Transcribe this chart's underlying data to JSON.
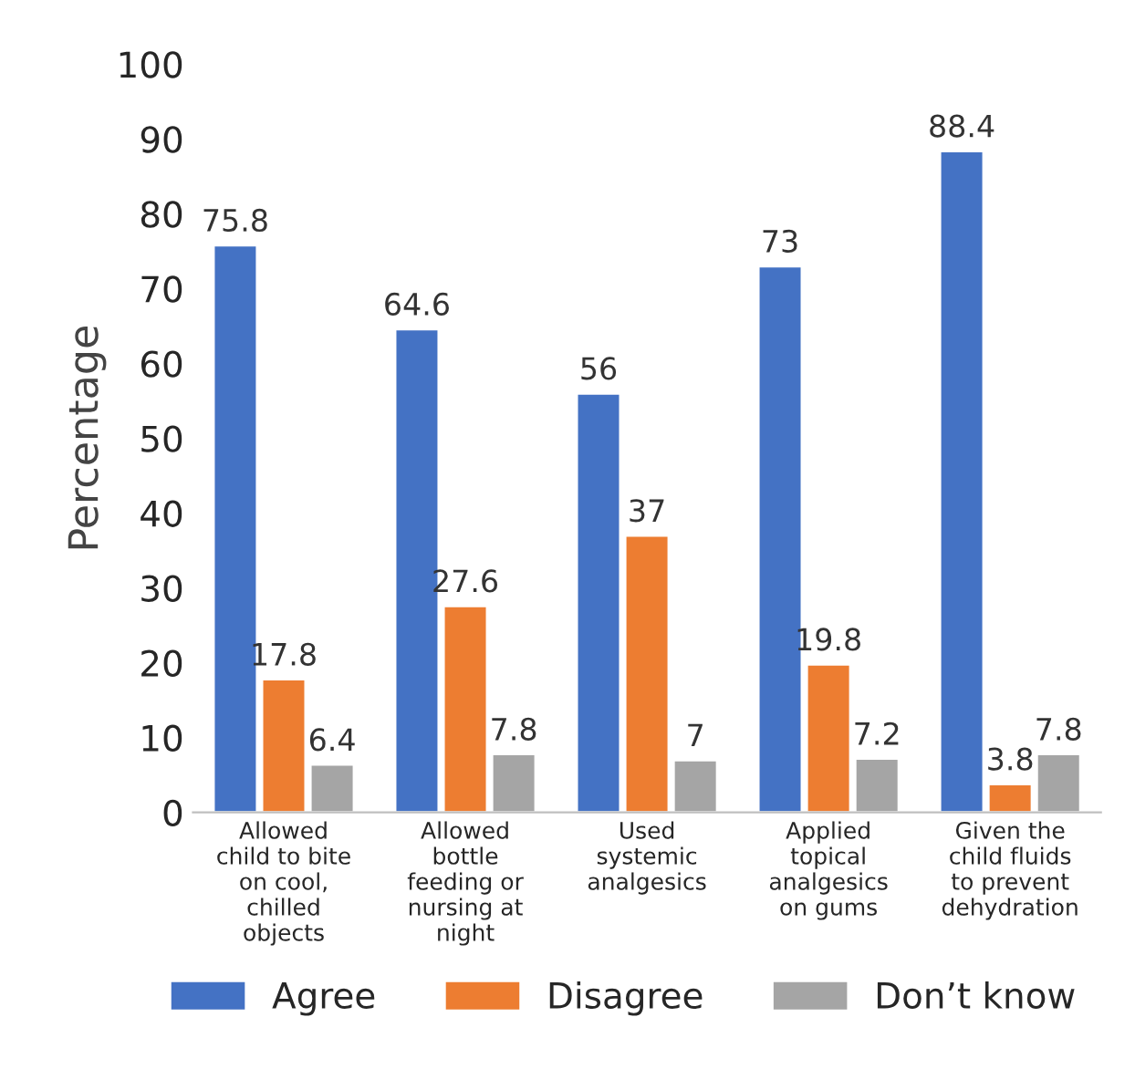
{
  "chart_data": {
    "type": "bar",
    "ylabel": "Percentage",
    "categories": [
      "Allowed\nchild to bite\non cool,\nchilled\nobjects",
      "Allowed\nbottle\nfeeding or\nnursing at\nnight",
      "Used\nsystemic\nanalgesics",
      "Applied\ntopical\nanalgesics\non gums",
      "Given the\nchild fluids\nto prevent\ndehydration"
    ],
    "series": [
      {
        "name": "Agree",
        "color": "#4472c4",
        "values": [
          75.8,
          64.6,
          56,
          73,
          88.4
        ]
      },
      {
        "name": "Disagree",
        "color": "#ed7d31",
        "values": [
          17.8,
          27.6,
          37,
          19.8,
          3.8
        ]
      },
      {
        "name": "Don’t know",
        "color": "#a5a5a5",
        "values": [
          6.4,
          7.8,
          7,
          7.2,
          7.8
        ]
      }
    ],
    "ylim": [
      0,
      100
    ],
    "yticks": [
      0,
      10,
      20,
      30,
      40,
      50,
      60,
      70,
      80,
      90,
      100
    ],
    "data_labels": true,
    "grid": false,
    "legend": "bottom"
  }
}
